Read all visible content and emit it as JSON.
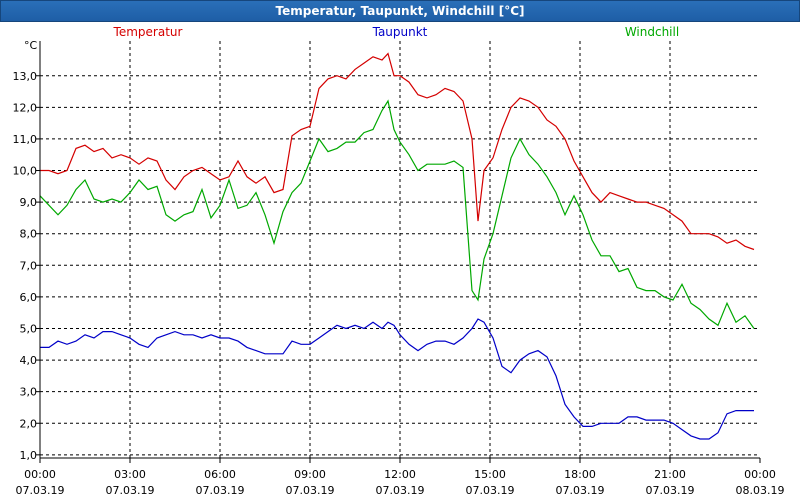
{
  "window": {
    "title": "Temperatur, Taupunkt, Windchill [°C]"
  },
  "chart_data": {
    "type": "line",
    "title": "Temperatur, Taupunkt, Windchill [°C]",
    "ylabel": "°C",
    "ylim": [
      0.9,
      14.1
    ],
    "xlim": [
      0,
      24
    ],
    "grid": true,
    "y_ticks": [
      "1,0",
      "2,0",
      "3,0",
      "4,0",
      "5,0",
      "6,0",
      "7,0",
      "8,0",
      "9,0",
      "10,0",
      "11,0",
      "12,0",
      "13,0"
    ],
    "x_ticks": [
      {
        "time": "00:00",
        "date": "07.03.19"
      },
      {
        "time": "03:00",
        "date": "07.03.19"
      },
      {
        "time": "06:00",
        "date": "07.03.19"
      },
      {
        "time": "09:00",
        "date": "07.03.19"
      },
      {
        "time": "12:00",
        "date": "07.03.19"
      },
      {
        "time": "15:00",
        "date": "07.03.19"
      },
      {
        "time": "18:00",
        "date": "07.03.19"
      },
      {
        "time": "21:00",
        "date": "07.03.19"
      },
      {
        "time": "00:00",
        "date": "08.03.19"
      }
    ],
    "series": [
      {
        "name": "Temperatur",
        "color": "#d40000",
        "legend_pos": "left",
        "points": [
          [
            0,
            10.0
          ],
          [
            0.3,
            10.0
          ],
          [
            0.6,
            9.9
          ],
          [
            0.9,
            10.0
          ],
          [
            1.2,
            10.7
          ],
          [
            1.5,
            10.8
          ],
          [
            1.8,
            10.6
          ],
          [
            2.1,
            10.7
          ],
          [
            2.4,
            10.4
          ],
          [
            2.7,
            10.5
          ],
          [
            3.0,
            10.4
          ],
          [
            3.3,
            10.2
          ],
          [
            3.6,
            10.4
          ],
          [
            3.9,
            10.3
          ],
          [
            4.2,
            9.7
          ],
          [
            4.5,
            9.4
          ],
          [
            4.8,
            9.8
          ],
          [
            5.1,
            10.0
          ],
          [
            5.4,
            10.1
          ],
          [
            5.7,
            9.9
          ],
          [
            6.0,
            9.7
          ],
          [
            6.3,
            9.8
          ],
          [
            6.6,
            10.3
          ],
          [
            6.9,
            9.8
          ],
          [
            7.2,
            9.6
          ],
          [
            7.5,
            9.8
          ],
          [
            7.8,
            9.3
          ],
          [
            8.1,
            9.4
          ],
          [
            8.4,
            11.1
          ],
          [
            8.7,
            11.3
          ],
          [
            9.0,
            11.4
          ],
          [
            9.3,
            12.6
          ],
          [
            9.6,
            12.9
          ],
          [
            9.9,
            13.0
          ],
          [
            10.2,
            12.9
          ],
          [
            10.5,
            13.2
          ],
          [
            10.8,
            13.4
          ],
          [
            11.1,
            13.6
          ],
          [
            11.4,
            13.5
          ],
          [
            11.6,
            13.7
          ],
          [
            11.8,
            13.0
          ],
          [
            12.0,
            13.0
          ],
          [
            12.3,
            12.8
          ],
          [
            12.6,
            12.4
          ],
          [
            12.9,
            12.3
          ],
          [
            13.2,
            12.4
          ],
          [
            13.5,
            12.6
          ],
          [
            13.8,
            12.5
          ],
          [
            14.1,
            12.2
          ],
          [
            14.4,
            11.0
          ],
          [
            14.6,
            8.4
          ],
          [
            14.8,
            10.0
          ],
          [
            15.1,
            10.4
          ],
          [
            15.4,
            11.3
          ],
          [
            15.7,
            12.0
          ],
          [
            16.0,
            12.3
          ],
          [
            16.3,
            12.2
          ],
          [
            16.6,
            12.0
          ],
          [
            16.9,
            11.6
          ],
          [
            17.2,
            11.4
          ],
          [
            17.5,
            11.0
          ],
          [
            17.8,
            10.3
          ],
          [
            18.1,
            9.8
          ],
          [
            18.4,
            9.3
          ],
          [
            18.7,
            9.0
          ],
          [
            19.0,
            9.3
          ],
          [
            19.3,
            9.2
          ],
          [
            19.6,
            9.1
          ],
          [
            19.9,
            9.0
          ],
          [
            20.2,
            9.0
          ],
          [
            20.5,
            8.9
          ],
          [
            20.8,
            8.8
          ],
          [
            21.1,
            8.6
          ],
          [
            21.4,
            8.4
          ],
          [
            21.7,
            8.0
          ],
          [
            22.0,
            8.0
          ],
          [
            22.3,
            8.0
          ],
          [
            22.6,
            7.9
          ],
          [
            22.9,
            7.7
          ],
          [
            23.2,
            7.8
          ],
          [
            23.5,
            7.6
          ],
          [
            23.8,
            7.5
          ]
        ]
      },
      {
        "name": "Taupunkt",
        "color": "#0000c8",
        "legend_pos": "center",
        "points": [
          [
            0,
            4.4
          ],
          [
            0.3,
            4.4
          ],
          [
            0.6,
            4.6
          ],
          [
            0.9,
            4.5
          ],
          [
            1.2,
            4.6
          ],
          [
            1.5,
            4.8
          ],
          [
            1.8,
            4.7
          ],
          [
            2.1,
            4.9
          ],
          [
            2.4,
            4.9
          ],
          [
            2.7,
            4.8
          ],
          [
            3.0,
            4.7
          ],
          [
            3.3,
            4.5
          ],
          [
            3.6,
            4.4
          ],
          [
            3.9,
            4.7
          ],
          [
            4.2,
            4.8
          ],
          [
            4.5,
            4.9
          ],
          [
            4.8,
            4.8
          ],
          [
            5.1,
            4.8
          ],
          [
            5.4,
            4.7
          ],
          [
            5.7,
            4.8
          ],
          [
            6.0,
            4.7
          ],
          [
            6.3,
            4.7
          ],
          [
            6.6,
            4.6
          ],
          [
            6.9,
            4.4
          ],
          [
            7.2,
            4.3
          ],
          [
            7.5,
            4.2
          ],
          [
            7.8,
            4.2
          ],
          [
            8.1,
            4.2
          ],
          [
            8.4,
            4.6
          ],
          [
            8.7,
            4.5
          ],
          [
            9.0,
            4.5
          ],
          [
            9.3,
            4.7
          ],
          [
            9.6,
            4.9
          ],
          [
            9.9,
            5.1
          ],
          [
            10.2,
            5.0
          ],
          [
            10.5,
            5.1
          ],
          [
            10.8,
            5.0
          ],
          [
            11.1,
            5.2
          ],
          [
            11.4,
            5.0
          ],
          [
            11.6,
            5.2
          ],
          [
            11.8,
            5.1
          ],
          [
            12.0,
            4.8
          ],
          [
            12.3,
            4.5
          ],
          [
            12.6,
            4.3
          ],
          [
            12.9,
            4.5
          ],
          [
            13.2,
            4.6
          ],
          [
            13.5,
            4.6
          ],
          [
            13.8,
            4.5
          ],
          [
            14.1,
            4.7
          ],
          [
            14.4,
            5.0
          ],
          [
            14.6,
            5.3
          ],
          [
            14.8,
            5.2
          ],
          [
            15.1,
            4.7
          ],
          [
            15.4,
            3.8
          ],
          [
            15.7,
            3.6
          ],
          [
            16.0,
            4.0
          ],
          [
            16.3,
            4.2
          ],
          [
            16.6,
            4.3
          ],
          [
            16.9,
            4.1
          ],
          [
            17.2,
            3.5
          ],
          [
            17.5,
            2.6
          ],
          [
            17.8,
            2.2
          ],
          [
            18.1,
            1.9
          ],
          [
            18.4,
            1.9
          ],
          [
            18.7,
            2.0
          ],
          [
            19.0,
            2.0
          ],
          [
            19.3,
            2.0
          ],
          [
            19.6,
            2.2
          ],
          [
            19.9,
            2.2
          ],
          [
            20.2,
            2.1
          ],
          [
            20.5,
            2.1
          ],
          [
            20.8,
            2.1
          ],
          [
            21.1,
            2.0
          ],
          [
            21.4,
            1.8
          ],
          [
            21.7,
            1.6
          ],
          [
            22.0,
            1.5
          ],
          [
            22.3,
            1.5
          ],
          [
            22.6,
            1.7
          ],
          [
            22.9,
            2.3
          ],
          [
            23.2,
            2.4
          ],
          [
            23.5,
            2.4
          ],
          [
            23.8,
            2.4
          ]
        ]
      },
      {
        "name": "Windchill",
        "color": "#00a800",
        "legend_pos": "right",
        "points": [
          [
            0,
            9.2
          ],
          [
            0.3,
            8.9
          ],
          [
            0.6,
            8.6
          ],
          [
            0.9,
            8.9
          ],
          [
            1.2,
            9.4
          ],
          [
            1.5,
            9.7
          ],
          [
            1.8,
            9.1
          ],
          [
            2.1,
            9.0
          ],
          [
            2.4,
            9.1
          ],
          [
            2.7,
            9.0
          ],
          [
            3.0,
            9.3
          ],
          [
            3.3,
            9.7
          ],
          [
            3.6,
            9.4
          ],
          [
            3.9,
            9.5
          ],
          [
            4.2,
            8.6
          ],
          [
            4.5,
            8.4
          ],
          [
            4.8,
            8.6
          ],
          [
            5.1,
            8.7
          ],
          [
            5.4,
            9.4
          ],
          [
            5.7,
            8.5
          ],
          [
            6.0,
            8.9
          ],
          [
            6.3,
            9.7
          ],
          [
            6.6,
            8.8
          ],
          [
            6.9,
            8.9
          ],
          [
            7.2,
            9.3
          ],
          [
            7.5,
            8.6
          ],
          [
            7.8,
            7.7
          ],
          [
            8.1,
            8.7
          ],
          [
            8.4,
            9.3
          ],
          [
            8.7,
            9.6
          ],
          [
            9.0,
            10.3
          ],
          [
            9.3,
            11.0
          ],
          [
            9.6,
            10.6
          ],
          [
            9.9,
            10.7
          ],
          [
            10.2,
            10.9
          ],
          [
            10.5,
            10.9
          ],
          [
            10.8,
            11.2
          ],
          [
            11.1,
            11.3
          ],
          [
            11.4,
            11.9
          ],
          [
            11.6,
            12.2
          ],
          [
            11.8,
            11.3
          ],
          [
            12.0,
            10.9
          ],
          [
            12.3,
            10.5
          ],
          [
            12.6,
            10.0
          ],
          [
            12.9,
            10.2
          ],
          [
            13.2,
            10.2
          ],
          [
            13.5,
            10.2
          ],
          [
            13.8,
            10.3
          ],
          [
            14.1,
            10.1
          ],
          [
            14.4,
            6.2
          ],
          [
            14.6,
            5.9
          ],
          [
            14.8,
            7.2
          ],
          [
            15.1,
            8.0
          ],
          [
            15.4,
            9.2
          ],
          [
            15.7,
            10.4
          ],
          [
            16.0,
            11.0
          ],
          [
            16.3,
            10.5
          ],
          [
            16.6,
            10.2
          ],
          [
            16.9,
            9.8
          ],
          [
            17.2,
            9.3
          ],
          [
            17.5,
            8.6
          ],
          [
            17.8,
            9.2
          ],
          [
            18.1,
            8.6
          ],
          [
            18.4,
            7.8
          ],
          [
            18.7,
            7.3
          ],
          [
            19.0,
            7.3
          ],
          [
            19.3,
            6.8
          ],
          [
            19.6,
            6.9
          ],
          [
            19.9,
            6.3
          ],
          [
            20.2,
            6.2
          ],
          [
            20.5,
            6.2
          ],
          [
            20.8,
            6.0
          ],
          [
            21.1,
            5.9
          ],
          [
            21.4,
            6.4
          ],
          [
            21.7,
            5.8
          ],
          [
            22.0,
            5.6
          ],
          [
            22.3,
            5.3
          ],
          [
            22.6,
            5.1
          ],
          [
            22.9,
            5.8
          ],
          [
            23.2,
            5.2
          ],
          [
            23.5,
            5.4
          ],
          [
            23.8,
            5.0
          ]
        ]
      }
    ]
  }
}
